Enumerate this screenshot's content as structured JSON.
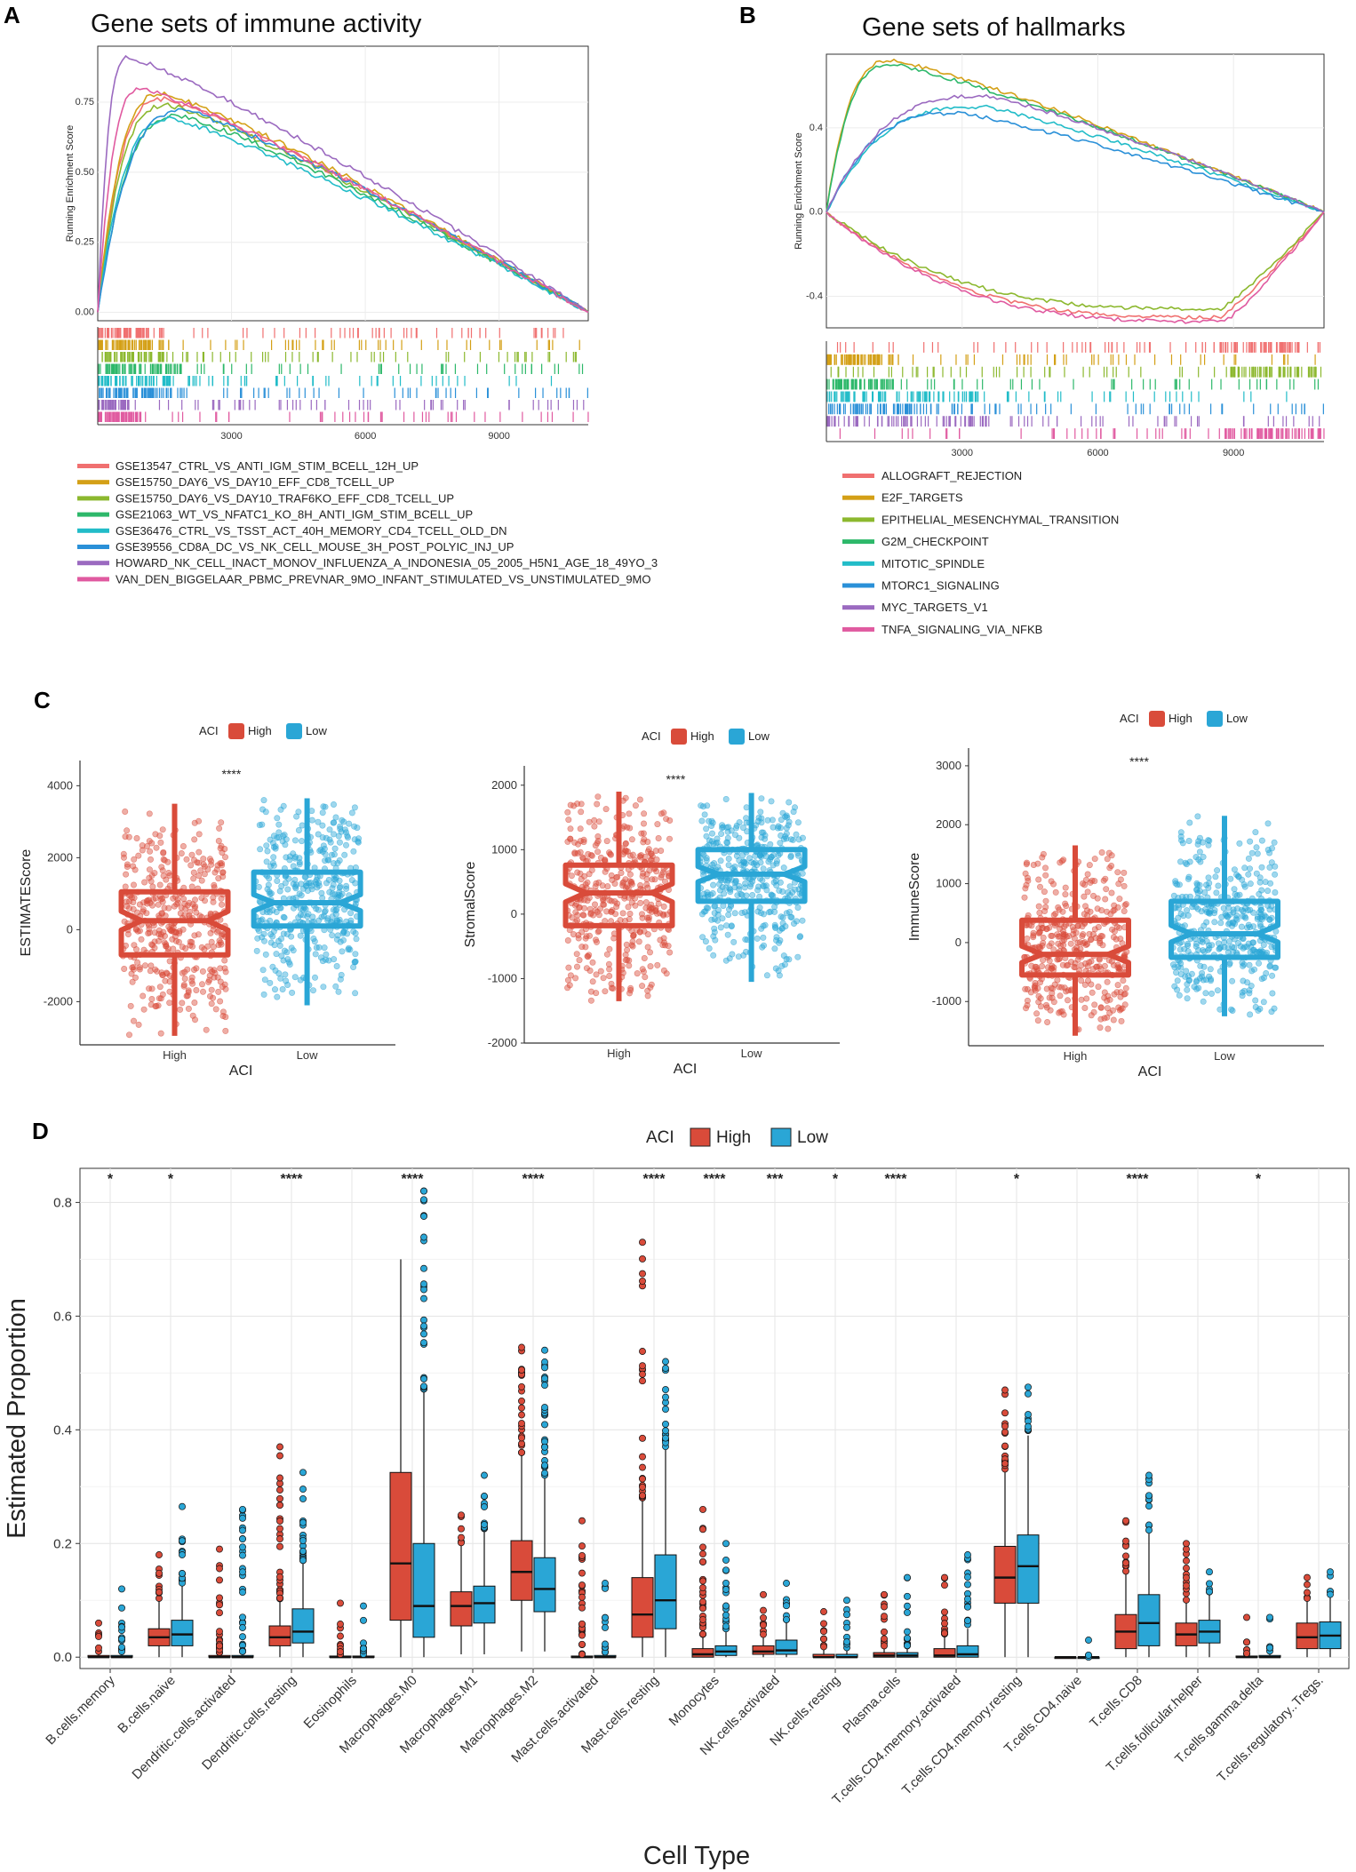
{
  "panels": {
    "A": {
      "letter": "A",
      "title": "Gene sets of immune activity"
    },
    "B": {
      "letter": "B",
      "title": "Gene sets of hallmarks"
    },
    "C": {
      "letter": "C"
    },
    "D": {
      "letter": "D"
    }
  },
  "colors": {
    "high": "#d94b3a",
    "low": "#2aa6d6",
    "gsea_A": [
      "#f07070",
      "#d4a017",
      "#8cb82e",
      "#2db86a",
      "#22bcc8",
      "#2a90d8",
      "#9b6ac0",
      "#e05aa0"
    ],
    "gsea_B": [
      "#f07070",
      "#d4a017",
      "#8cb82e",
      "#2db86a",
      "#22bcc8",
      "#2a90d8",
      "#9b6ac0",
      "#e05aa0"
    ]
  },
  "chart_data": [
    {
      "id": "A",
      "type": "line",
      "title": "Gene sets of immune activity",
      "ylabel": "Running Enrichment Score",
      "xlabel": "",
      "xlim": [
        0,
        11000
      ],
      "ylim": [
        -0.03,
        0.95
      ],
      "xticks": [
        3000,
        6000,
        9000
      ],
      "yticks": [
        0.0,
        0.25,
        0.5,
        0.75
      ],
      "ytick_labels": [
        "0.00",
        "0.25",
        "0.50",
        "0.75"
      ],
      "series": [
        {
          "name": "GSE13547_CTRL_VS_ANTI_IGM_STIM_BCELL_12H_UP",
          "peak_x": 1500,
          "peak_y": 0.76
        },
        {
          "name": "GSE15750_DAY6_VS_DAY10_EFF_CD8_TCELL_UP",
          "peak_x": 1500,
          "peak_y": 0.78
        },
        {
          "name": "GSE15750_DAY6_VS_DAY10_TRAF6KO_EFF_CD8_TCELL_UP",
          "peak_x": 1600,
          "peak_y": 0.74
        },
        {
          "name": "GSE21063_WT_VS_NFATC1_KO_8H_ANTI_IGM_STIM_BCELL_UP",
          "peak_x": 1900,
          "peak_y": 0.7
        },
        {
          "name": "GSE36476_CTRL_VS_TSST_ACT_40H_MEMORY_CD4_TCELL_OLD_DN",
          "peak_x": 1700,
          "peak_y": 0.69
        },
        {
          "name": "GSE39556_CD8A_DC_VS_NK_CELL_MOUSE_3H_POST_POLYIC_INJ_UP",
          "peak_x": 2000,
          "peak_y": 0.72
        },
        {
          "name": "HOWARD_NK_CELL_INACT_MONOV_INFLUENZA_A_INDONESIA_05_2005_H5N1_AGE_18_49YO_3",
          "peak_x": 700,
          "peak_y": 0.91
        },
        {
          "name": "VAN_DEN_BIGGELAAR_PBMC_PREVNAR_9MO_INFANT_STIMULATED_VS_UNSTIMULATED_9MO",
          "peak_x": 1000,
          "peak_y": 0.8
        }
      ]
    },
    {
      "id": "B",
      "type": "line",
      "title": "Gene sets of hallmarks",
      "ylabel": "Running Enrichment Score",
      "xlabel": "",
      "xlim": [
        0,
        11000
      ],
      "ylim": [
        -0.55,
        0.75
      ],
      "xticks": [
        3000,
        6000,
        9000
      ],
      "yticks": [
        -0.4,
        0.0,
        0.4
      ],
      "ytick_labels": [
        "-0.4",
        "0.0",
        "0.4"
      ],
      "series": [
        {
          "name": "ALLOGRAFT_REJECTION",
          "peak_x": 8700,
          "peak_y": -0.5
        },
        {
          "name": "E2F_TARGETS",
          "peak_x": 1500,
          "peak_y": 0.72
        },
        {
          "name": "EPITHELIAL_MESENCHYMAL_TRANSITION",
          "peak_x": 8700,
          "peak_y": -0.46
        },
        {
          "name": "G2M_CHECKPOINT",
          "peak_x": 1500,
          "peak_y": 0.7
        },
        {
          "name": "MITOTIC_SPINDLE",
          "peak_x": 3500,
          "peak_y": 0.5
        },
        {
          "name": "MTORC1_SIGNALING",
          "peak_x": 3000,
          "peak_y": 0.47
        },
        {
          "name": "MYC_TARGETS_V1",
          "peak_x": 3600,
          "peak_y": 0.55
        },
        {
          "name": "TNFA_SIGNALING_VIA_NFKB",
          "peak_x": 8800,
          "peak_y": -0.52
        }
      ]
    },
    {
      "id": "C1",
      "type": "boxplot",
      "title": "",
      "xlabel": "ACI",
      "ylabel": "ESTIMATEScore",
      "categories": [
        "High",
        "Low"
      ],
      "ylim": [
        -3200,
        4700
      ],
      "yticks": [
        -2000,
        0,
        2000,
        4000
      ],
      "legend_title": "ACI",
      "legend": [
        "High",
        "Low"
      ],
      "significance": "****",
      "boxes": [
        {
          "group": "High",
          "min": -2950,
          "q1": -700,
          "median": 250,
          "q3": 1050,
          "max": 3500
        },
        {
          "group": "Low",
          "min": -2100,
          "q1": 100,
          "median": 750,
          "q3": 1600,
          "max": 3650
        }
      ]
    },
    {
      "id": "C2",
      "type": "boxplot",
      "title": "",
      "xlabel": "ACI",
      "ylabel": "StromalScore",
      "categories": [
        "High",
        "Low"
      ],
      "ylim": [
        -2000,
        2300
      ],
      "yticks": [
        -2000,
        -1000,
        0,
        1000,
        2000
      ],
      "legend_title": "ACI",
      "legend": [
        "High",
        "Low"
      ],
      "significance": "****",
      "boxes": [
        {
          "group": "High",
          "min": -1350,
          "q1": -180,
          "median": 330,
          "q3": 760,
          "max": 1900
        },
        {
          "group": "Low",
          "min": -1050,
          "q1": 200,
          "median": 620,
          "q3": 1000,
          "max": 1880
        }
      ]
    },
    {
      "id": "C3",
      "type": "boxplot",
      "title": "",
      "xlabel": "ACI",
      "ylabel": "ImmuneScore",
      "categories": [
        "High",
        "Low"
      ],
      "ylim": [
        -1750,
        3300
      ],
      "yticks": [
        -1000,
        0,
        1000,
        2000,
        3000
      ],
      "legend_title": "ACI",
      "legend": [
        "High",
        "Low"
      ],
      "significance": "****",
      "boxes": [
        {
          "group": "High",
          "min": -1580,
          "q1": -550,
          "median": -200,
          "q3": 380,
          "max": 1650
        },
        {
          "group": "Low",
          "min": -1250,
          "q1": -250,
          "median": 150,
          "q3": 700,
          "max": 2150
        }
      ]
    },
    {
      "id": "D",
      "type": "boxplot",
      "title": "",
      "xlabel": "Cell Type",
      "ylabel": "Estimated Proportion",
      "ylim": [
        -0.02,
        0.86
      ],
      "yticks": [
        0.0,
        0.2,
        0.4,
        0.6,
        0.8
      ],
      "ytick_labels": [
        "0.0",
        "0.2",
        "0.4",
        "0.6",
        "0.8"
      ],
      "legend_title": "ACI",
      "legend": [
        "High",
        "Low"
      ],
      "categories": [
        "B.cells.memory",
        "B.cells.naive",
        "Dendritic.cells.activated",
        "Dendritic.cells.resting",
        "Eosinophils",
        "Macrophages.M0",
        "Macrophages.M1",
        "Macrophages.M2",
        "Mast.cells.activated",
        "Mast.cells.resting",
        "Monocytes",
        "NK.cells.activated",
        "NK.cells.resting",
        "Plasma.cells",
        "T.cells.CD4.memory.activated",
        "T.cells.CD4.memory.resting",
        "T.cells.CD4.naive",
        "T.cells.CD8",
        "T.cells.follicular.helper",
        "T.cells.gamma.delta",
        "T.cells.regulatory..Tregs."
      ],
      "significance": [
        "*",
        "*",
        "",
        "****",
        "",
        "****",
        "",
        "****",
        "",
        "****",
        "****",
        "***",
        "*",
        "****",
        "",
        "*",
        "",
        "****",
        "",
        "*",
        ""
      ],
      "series": [
        {
          "name": "High",
          "boxes": [
            [
              0,
              0,
              0,
              0.003,
              0.008,
              0.06
            ],
            [
              0,
              0.02,
              0.035,
              0.05,
              0.1,
              0.18
            ],
            [
              0,
              0,
              0,
              0.003,
              0.008,
              0.19
            ],
            [
              0,
              0.02,
              0.035,
              0.055,
              0.1,
              0.37
            ],
            [
              0,
              0,
              0,
              0.002,
              0.005,
              0.095
            ],
            [
              0,
              0.065,
              0.165,
              0.325,
              0.7,
              0.7
            ],
            [
              0.005,
              0.055,
              0.09,
              0.115,
              0.2,
              0.25
            ],
            [
              0.01,
              0.1,
              0.15,
              0.205,
              0.36,
              0.545
            ],
            [
              0,
              0,
              0,
              0.002,
              0.005,
              0.24
            ],
            [
              0,
              0.035,
              0.075,
              0.14,
              0.28,
              0.73
            ],
            [
              0,
              0,
              0.005,
              0.015,
              0.04,
              0.26
            ],
            [
              0,
              0.005,
              0.01,
              0.02,
              0.04,
              0.11
            ],
            [
              0,
              0,
              0,
              0.005,
              0.015,
              0.08
            ],
            [
              0,
              0,
              0.003,
              0.008,
              0.02,
              0.11
            ],
            [
              0,
              0,
              0.003,
              0.015,
              0.04,
              0.14
            ],
            [
              0,
              0.095,
              0.14,
              0.195,
              0.33,
              0.47
            ],
            [
              0,
              0,
              0,
              0,
              0,
              0
            ],
            [
              0,
              0.015,
              0.045,
              0.075,
              0.15,
              0.24
            ],
            [
              0,
              0.02,
              0.04,
              0.06,
              0.1,
              0.2
            ],
            [
              0,
              0,
              0,
              0.002,
              0.005,
              0.07
            ],
            [
              0,
              0.015,
              0.035,
              0.06,
              0.1,
              0.14
            ]
          ]
        },
        {
          "name": "Low",
          "boxes": [
            [
              0,
              0,
              0,
              0.003,
              0.01,
              0.12
            ],
            [
              0,
              0.02,
              0.04,
              0.065,
              0.13,
              0.265
            ],
            [
              0,
              0,
              0,
              0.003,
              0.01,
              0.26
            ],
            [
              0,
              0.025,
              0.045,
              0.085,
              0.17,
              0.325
            ],
            [
              0,
              0,
              0,
              0.002,
              0.005,
              0.09
            ],
            [
              0,
              0.035,
              0.09,
              0.2,
              0.47,
              0.82
            ],
            [
              0.005,
              0.06,
              0.095,
              0.125,
              0.22,
              0.32
            ],
            [
              0.01,
              0.08,
              0.12,
              0.175,
              0.32,
              0.54
            ],
            [
              0,
              0,
              0,
              0.003,
              0.008,
              0.13
            ],
            [
              0,
              0.05,
              0.1,
              0.18,
              0.37,
              0.52
            ],
            [
              0,
              0.003,
              0.01,
              0.02,
              0.05,
              0.2
            ],
            [
              0,
              0.005,
              0.012,
              0.03,
              0.06,
              0.13
            ],
            [
              0,
              0,
              0,
              0.005,
              0.015,
              0.1
            ],
            [
              0,
              0,
              0.003,
              0.008,
              0.02,
              0.14
            ],
            [
              0,
              0,
              0.005,
              0.02,
              0.05,
              0.18
            ],
            [
              0,
              0.095,
              0.16,
              0.215,
              0.39,
              0.475
            ],
            [
              0,
              0,
              0,
              0,
              0,
              0.03
            ],
            [
              0,
              0.02,
              0.06,
              0.11,
              0.22,
              0.32
            ],
            [
              0,
              0.025,
              0.045,
              0.065,
              0.11,
              0.15
            ],
            [
              0,
              0,
              0,
              0.003,
              0.008,
              0.07
            ],
            [
              0,
              0.015,
              0.038,
              0.062,
              0.11,
              0.15
            ]
          ]
        }
      ]
    }
  ]
}
